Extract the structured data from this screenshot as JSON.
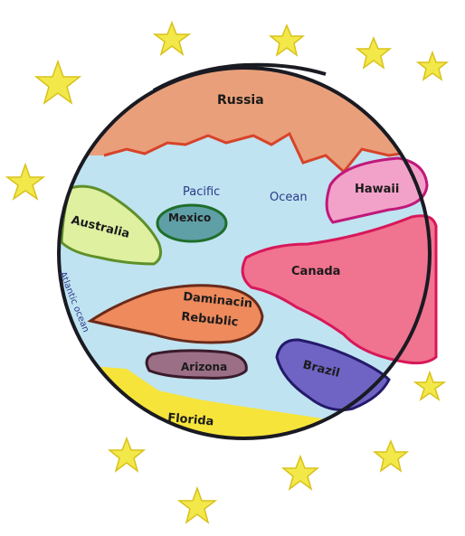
{
  "drawing": {
    "ocean_labels": {
      "pacific_word": "Pacific",
      "ocean_word": "Ocean",
      "atlantic": "Atlantic ocean"
    },
    "land_labels": {
      "russia": "Russia",
      "hawaii": "Hawaii",
      "australia": "Australia",
      "mexico": "Mexico",
      "canada": "Canada",
      "dominican_line1": "Daminacin",
      "dominican_line2": "Rebublic",
      "arizona": "Arizona",
      "brazil": "Brazil",
      "florida": "Florida"
    },
    "colors": {
      "ocean": "#bfe3f0",
      "russia": "#e9a07a",
      "russia_border": "#d8432a",
      "hawaii": "#f2a2c8",
      "hawaii_border": "#c0187a",
      "australia": "#dff0a0",
      "australia_border": "#5f8f2a",
      "mexico": "#5f9fa6",
      "mexico_border": "#1f6e2a",
      "canada": "#f0738f",
      "canada_border": "#d8175a",
      "dominican": "#ee8a5c",
      "dominican_border": "#6a2a1a",
      "arizona": "#9b6f86",
      "arizona_border": "#3a1a2a",
      "brazil": "#6f64c4",
      "brazil_border": "#241a6a",
      "florida": "#f6e43a",
      "star": "#f2e84a",
      "star_border": "#d9c21a",
      "outline": "#1a1a22"
    }
  }
}
